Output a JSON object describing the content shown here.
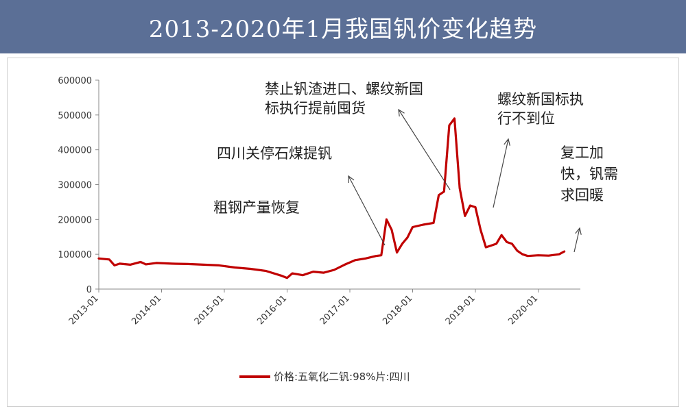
{
  "chart_data": {
    "type": "line",
    "title": "2013-2020年1月我国钒价变化趋势",
    "xlabel": "",
    "ylabel": "",
    "ylim": [
      0,
      600000
    ],
    "y_ticks": [
      "600000",
      "500000",
      "400000",
      "300000",
      "200000",
      "100000",
      "0"
    ],
    "x_ticks": [
      "2013-01",
      "2014-01",
      "2015-01",
      "2016-01",
      "2017-01",
      "2018-01",
      "2019-01",
      "2020-01"
    ],
    "grid": false,
    "legend_position": "bottom",
    "series": [
      {
        "name": "价格:五氧化二钒:98%片:四川",
        "color": "#c00000",
        "x": [
          "2013-01",
          "2013-03",
          "2013-04",
          "2013-05",
          "2013-07",
          "2013-09",
          "2013-10",
          "2013-12",
          "2014-03",
          "2014-06",
          "2014-09",
          "2014-12",
          "2015-03",
          "2015-06",
          "2015-09",
          "2015-12",
          "2016-01",
          "2016-02",
          "2016-04",
          "2016-06",
          "2016-08",
          "2016-10",
          "2016-12",
          "2017-02",
          "2017-04",
          "2017-06",
          "2017-07",
          "2017-08",
          "2017-09",
          "2017-10",
          "2017-11",
          "2017-12",
          "2018-01",
          "2018-03",
          "2018-05",
          "2018-06",
          "2018-07",
          "2018-08",
          "2018-09",
          "2018-10",
          "2018-11",
          "2018-12",
          "2019-01",
          "2019-02",
          "2019-03",
          "2019-04",
          "2019-05",
          "2019-06",
          "2019-07",
          "2019-08",
          "2019-09",
          "2019-10",
          "2019-11",
          "2019-12",
          "2020-01",
          "2020-03",
          "2020-05",
          "2020-06"
        ],
        "values": [
          88000,
          85000,
          68000,
          73000,
          70000,
          78000,
          71000,
          75000,
          73000,
          72000,
          70000,
          68000,
          62000,
          58000,
          52000,
          38000,
          32000,
          45000,
          40000,
          50000,
          47000,
          55000,
          70000,
          83000,
          88000,
          95000,
          97000,
          200000,
          170000,
          105000,
          130000,
          148000,
          178000,
          185000,
          190000,
          270000,
          280000,
          470000,
          490000,
          290000,
          210000,
          240000,
          235000,
          170000,
          120000,
          125000,
          130000,
          155000,
          135000,
          130000,
          110000,
          100000,
          95000,
          96000,
          97000,
          96000,
          100000,
          108000
        ]
      }
    ],
    "annotations": [
      {
        "lines": [
          "粗钢产量恢复"
        ]
      },
      {
        "lines": [
          "四川关停石煤提钒"
        ]
      },
      {
        "lines": [
          "禁止钒渣进口、螺纹新国",
          "标执行提前囤货"
        ]
      },
      {
        "lines": [
          "螺纹新国标执",
          "行不到位"
        ]
      },
      {
        "lines": [
          "复工加",
          "快，钒需",
          "求回暖"
        ]
      }
    ]
  }
}
